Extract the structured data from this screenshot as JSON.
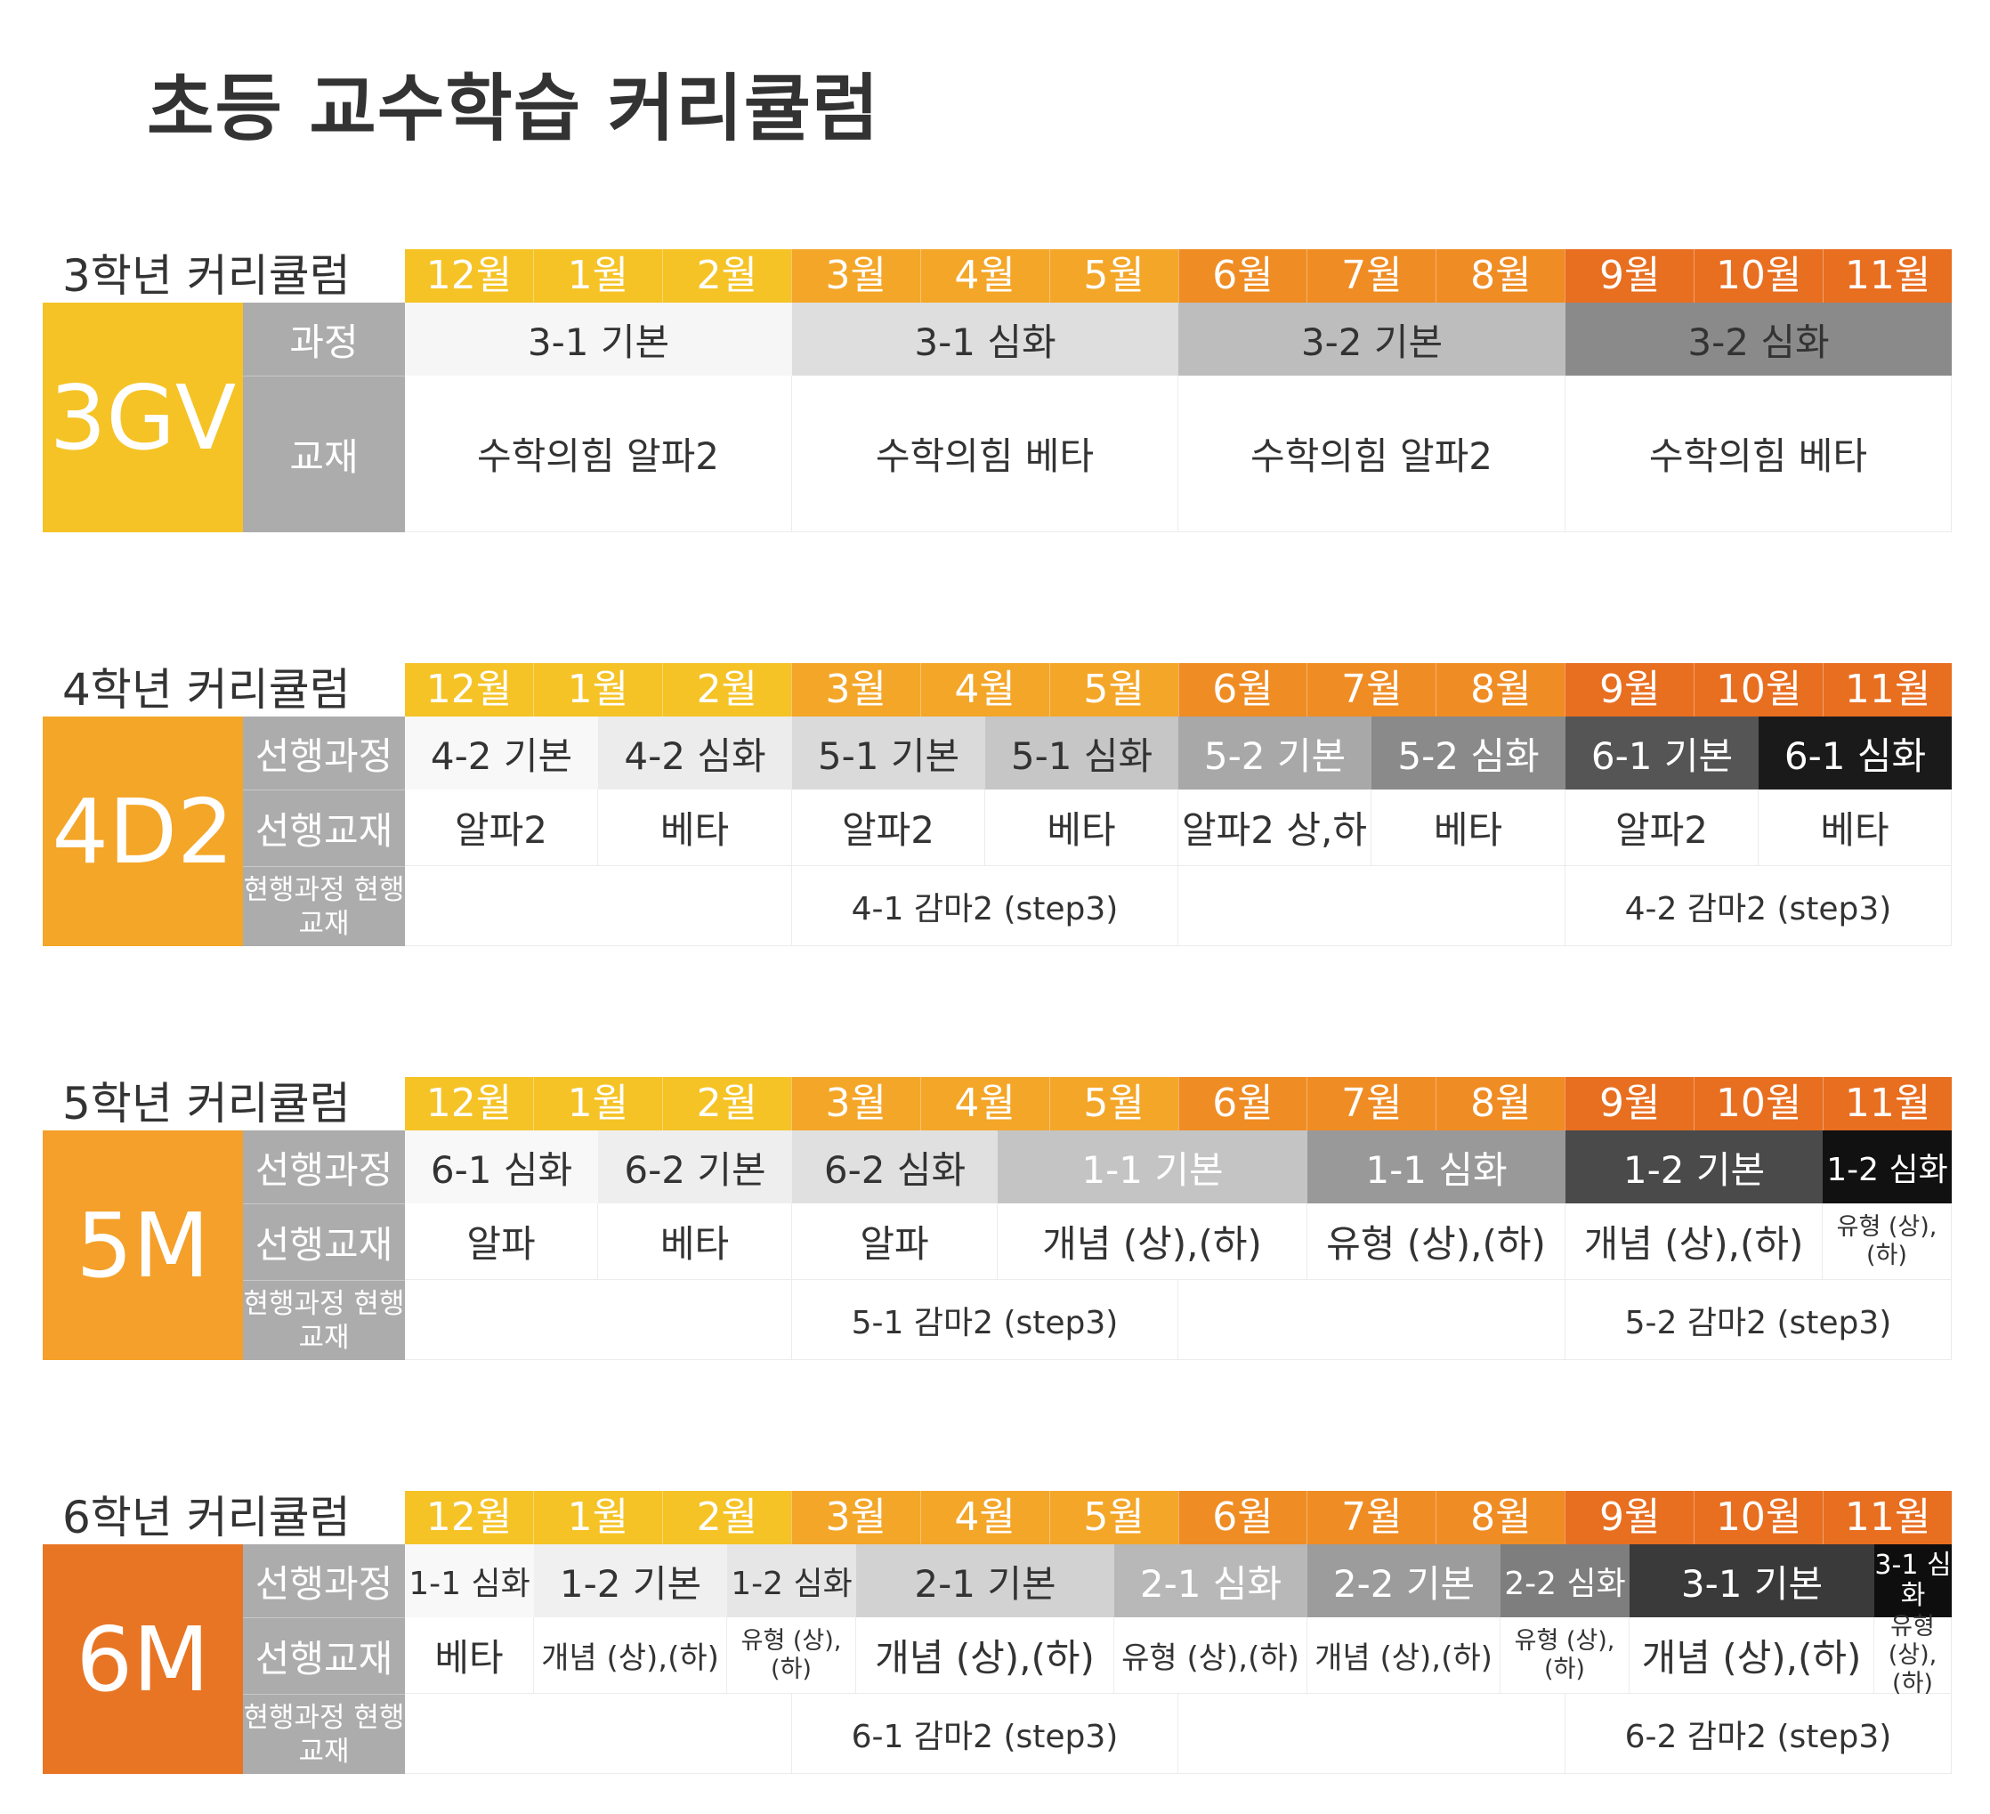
{
  "title": "초등 교수학습 커리큘럼",
  "months": [
    "12월",
    "1월",
    "2월",
    "3월",
    "4월",
    "5월",
    "6월",
    "7월",
    "8월",
    "9월",
    "10월",
    "11월"
  ],
  "colors": {
    "month": [
      "#f5c326",
      "#f5c326",
      "#f5c326",
      "#f4a628",
      "#f4a628",
      "#f4a628",
      "#ef8c23",
      "#ef8c23",
      "#ef8c23",
      "#e86e20",
      "#e86e20",
      "#e86e20"
    ],
    "label_bg": "#acacac"
  },
  "sections": [
    {
      "label": "3학년 커리큘럼",
      "code": "3GV",
      "code_color": "#f5c326",
      "rows": [
        {
          "label": "과정",
          "h": 82,
          "kind": "course",
          "cells": [
            {
              "text": "3-1 기본",
              "span": 3,
              "bg": "#f6f6f6",
              "fg": "#333"
            },
            {
              "text": "3-1 심화",
              "span": 3,
              "bg": "#dedede",
              "fg": "#333"
            },
            {
              "text": "3-2 기본",
              "span": 3,
              "bg": "#bdbdbd",
              "fg": "#333"
            },
            {
              "text": "3-2 심화",
              "span": 3,
              "bg": "#8a8a8a",
              "fg": "#333"
            }
          ]
        },
        {
          "label": "교재",
          "h": 176,
          "kind": "book",
          "cells": [
            {
              "text": "수학의힘 알파2",
              "span": 3
            },
            {
              "text": "수학의힘 베타",
              "span": 3
            },
            {
              "text": "수학의힘 알파2",
              "span": 3
            },
            {
              "text": "수학의힘 베타",
              "span": 3
            }
          ]
        }
      ]
    },
    {
      "label": "4학년 커리큘럼",
      "code": "4D2",
      "code_color": "#f4a628",
      "rows": [
        {
          "label": "선행과정",
          "h": 82,
          "kind": "course",
          "cells": [
            {
              "text": "4-2 기본",
              "span": 1.5,
              "bg": "#f8f8f8",
              "fg": "#333"
            },
            {
              "text": "4-2 심화",
              "span": 1.5,
              "bg": "#ececec",
              "fg": "#333"
            },
            {
              "text": "5-1 기본",
              "span": 1.5,
              "bg": "#dadada",
              "fg": "#333"
            },
            {
              "text": "5-1 심화",
              "span": 1.5,
              "bg": "#c6c6c6",
              "fg": "#333"
            },
            {
              "text": "5-2 기본",
              "span": 1.5,
              "bg": "#a8a8a8",
              "fg": "#fff"
            },
            {
              "text": "5-2 심화",
              "span": 1.5,
              "bg": "#8a8a8a",
              "fg": "#fff"
            },
            {
              "text": "6-1 기본",
              "span": 1.5,
              "bg": "#555555",
              "fg": "#fff"
            },
            {
              "text": "6-1 심화",
              "span": 1.5,
              "bg": "#1a1a1a",
              "fg": "#fff"
            }
          ]
        },
        {
          "label": "선행교재",
          "h": 86,
          "kind": "book",
          "cells": [
            {
              "text": "알파2",
              "span": 1.5
            },
            {
              "text": "베타",
              "span": 1.5
            },
            {
              "text": "알파2",
              "span": 1.5
            },
            {
              "text": "베타",
              "span": 1.5
            },
            {
              "text": "알파2 상,하",
              "span": 1.5
            },
            {
              "text": "베타",
              "span": 1.5
            },
            {
              "text": "알파2",
              "span": 1.5
            },
            {
              "text": "베타",
              "span": 1.5
            }
          ]
        },
        {
          "label": "현행과정 현행교재",
          "h": 90,
          "kind": "cur",
          "cells": [
            {
              "text": "",
              "span": 3
            },
            {
              "text": "4-1 감마2 (step3)",
              "span": 3
            },
            {
              "text": "",
              "span": 3
            },
            {
              "text": "4-2 감마2 (step3)",
              "span": 3
            }
          ]
        }
      ]
    },
    {
      "label": "5학년 커리큘럼",
      "code": "5M",
      "code_color": "#f4a02a",
      "rows": [
        {
          "label": "선행과정",
          "h": 82,
          "kind": "course",
          "cells": [
            {
              "text": "6-1 심화",
              "span": 1.5,
              "bg": "#f8f8f8",
              "fg": "#333"
            },
            {
              "text": "6-2 기본",
              "span": 1.5,
              "bg": "#eeeeee",
              "fg": "#333"
            },
            {
              "text": "6-2 심화",
              "span": 1.6,
              "bg": "#e0e0e0",
              "fg": "#333"
            },
            {
              "text": "1-1 기본",
              "span": 2.4,
              "bg": "#c4c4c4",
              "fg": "#fff"
            },
            {
              "text": "1-1 심화",
              "span": 2,
              "bg": "#999999",
              "fg": "#fff"
            },
            {
              "text": "1-2 기본",
              "span": 2,
              "bg": "#4a4a4a",
              "fg": "#fff"
            },
            {
              "text": "1-2 심화",
              "span": 1,
              "bg": "#111111",
              "fg": "#fff",
              "size": "s1"
            }
          ]
        },
        {
          "label": "선행교재",
          "h": 86,
          "kind": "book",
          "cells": [
            {
              "text": "알파",
              "span": 1.5
            },
            {
              "text": "베타",
              "span": 1.5
            },
            {
              "text": "알파",
              "span": 1.6
            },
            {
              "text": "개념 (상),(하)",
              "span": 2.4
            },
            {
              "text": "유형 (상),(하)",
              "span": 2
            },
            {
              "text": "개념 (상),(하)",
              "span": 2
            },
            {
              "text": "유형 (상),(하)",
              "span": 1,
              "size": "s2"
            }
          ]
        },
        {
          "label": "현행과정 현행교재",
          "h": 90,
          "kind": "cur",
          "cells": [
            {
              "text": "",
              "span": 3
            },
            {
              "text": "5-1 감마2 (step3)",
              "span": 3
            },
            {
              "text": "",
              "span": 3
            },
            {
              "text": "5-2 감마2 (step3)",
              "span": 3
            }
          ]
        }
      ]
    },
    {
      "label": "6학년 커리큘럼",
      "code": "6M",
      "code_color": "#e87524",
      "rows": [
        {
          "label": "선행과정",
          "h": 82,
          "kind": "course",
          "cells": [
            {
              "text": "1-1 심화",
              "span": 1,
              "bg": "#f8f8f8",
              "fg": "#333",
              "size": "s1"
            },
            {
              "text": "1-2 기본",
              "span": 1.5,
              "bg": "#f0f0f0",
              "fg": "#333"
            },
            {
              "text": "1-2 심화",
              "span": 1,
              "bg": "#e6e6e6",
              "fg": "#333",
              "size": "s1"
            },
            {
              "text": "2-1 기본",
              "span": 2,
              "bg": "#d2d2d2",
              "fg": "#333"
            },
            {
              "text": "2-1 심화",
              "span": 1.5,
              "bg": "#b8b8b8",
              "fg": "#fff"
            },
            {
              "text": "2-2 기본",
              "span": 1.5,
              "bg": "#9c9c9c",
              "fg": "#fff"
            },
            {
              "text": "2-2 심화",
              "span": 1,
              "bg": "#7e7e7e",
              "fg": "#fff",
              "size": "s1"
            },
            {
              "text": "3-1 기본",
              "span": 1.9,
              "bg": "#3a3a3a",
              "fg": "#fff"
            },
            {
              "text": "3-1 심화",
              "span": 0.6,
              "bg": "#0e0e0e",
              "fg": "#fff",
              "size": "s2"
            }
          ]
        },
        {
          "label": "선행교재",
          "h": 86,
          "kind": "book",
          "cells": [
            {
              "text": "베타",
              "span": 1
            },
            {
              "text": "개념 (상),(하)",
              "span": 1.5,
              "size": "s1"
            },
            {
              "text": "유형 (상),(하)",
              "span": 1,
              "size": "s2"
            },
            {
              "text": "개념 (상),(하)",
              "span": 2
            },
            {
              "text": "유형 (상),(하)",
              "span": 1.5,
              "size": "s1"
            },
            {
              "text": "개념 (상),(하)",
              "span": 1.5,
              "size": "s1"
            },
            {
              "text": "유형 (상),(하)",
              "span": 1,
              "size": "s2"
            },
            {
              "text": "개념 (상),(하)",
              "span": 1.9
            },
            {
              "text": "유형 (상),(하)",
              "span": 0.6,
              "size": "s2"
            }
          ]
        },
        {
          "label": "현행과정 현행교재",
          "h": 90,
          "kind": "cur",
          "cells": [
            {
              "text": "",
              "span": 3
            },
            {
              "text": "6-1 감마2 (step3)",
              "span": 3
            },
            {
              "text": "",
              "span": 3
            },
            {
              "text": "6-2 감마2 (step3)",
              "span": 3
            }
          ]
        }
      ]
    }
  ]
}
